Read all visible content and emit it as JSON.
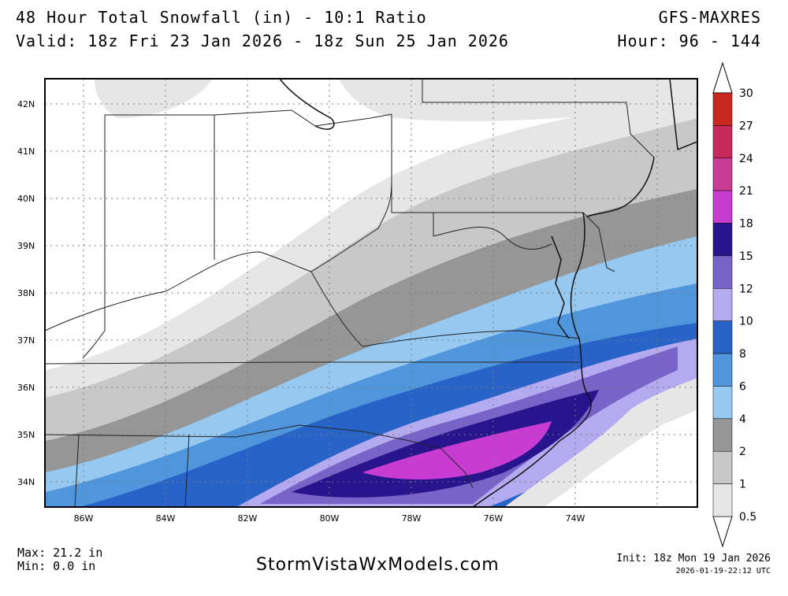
{
  "header": {
    "title": "48 Hour Total Snowfall (in) - 10:1 Ratio",
    "valid": "Valid: 18z Fri 23 Jan 2026 - 18z Sun 25 Jan 2026",
    "model": "GFS-MAXRES",
    "hour": "Hour: 96 - 144"
  },
  "axes": {
    "lat_labels": [
      "42N",
      "41N",
      "40N",
      "39N",
      "38N",
      "37N",
      "36N",
      "35N",
      "34N"
    ],
    "lon_labels": [
      "86W",
      "84W",
      "82W",
      "80W",
      "78W",
      "76W",
      "74W"
    ]
  },
  "legend": {
    "levels": [
      "30",
      "27",
      "24",
      "21",
      "18",
      "15",
      "12",
      "10",
      "8",
      "6",
      "4",
      "2",
      "1",
      "0.5"
    ],
    "colors": [
      "#c8281e",
      "#c8285a",
      "#c83c96",
      "#c83cd2",
      "#28148c",
      "#7864c8",
      "#b4aaf0",
      "#2864c8",
      "#5096dc",
      "#96c8f0",
      "#969696",
      "#c8c8c8",
      "#e6e6e6"
    ]
  },
  "footer": {
    "max": "Max: 21.2 in",
    "min": "Min: 0.0 in",
    "site": "StormVistaWxModels.com",
    "init": "Init: 18z Mon 19 Jan 2026",
    "stamp": "2026-01-19-22:12 UTC"
  },
  "icons": [
    "legend-arrow-up-icon",
    "legend-arrow-down-icon"
  ]
}
